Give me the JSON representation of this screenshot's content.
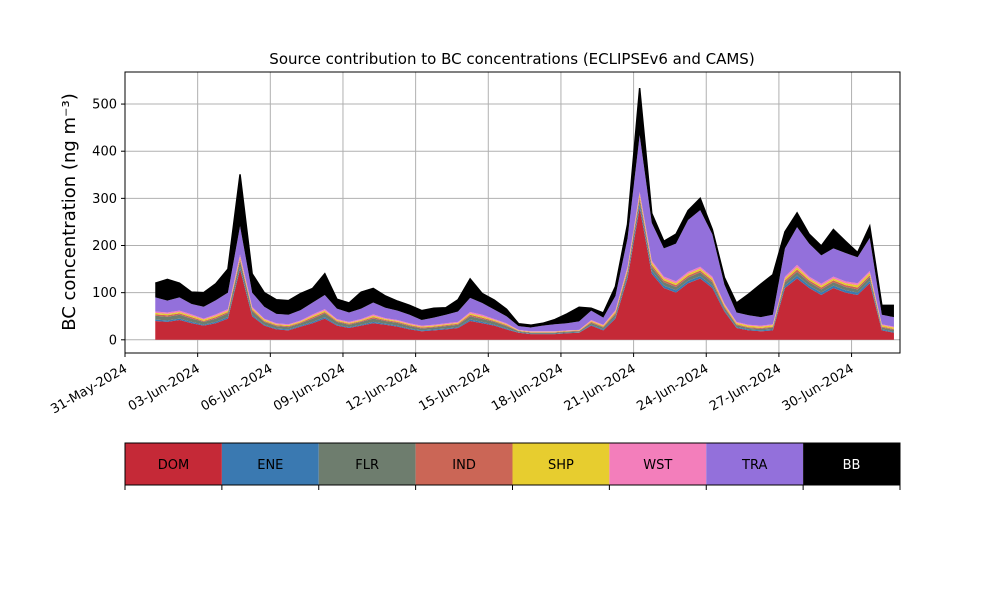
{
  "chart_data": {
    "type": "area",
    "stacked": true,
    "title": "Source contribution to BC concentrations (ECLIPSEv6 and CAMS)",
    "ylabel": "BC concentration (ng m⁻³)",
    "xlabel": "",
    "x_axis": {
      "type": "date",
      "range": [
        "2024-05-31",
        "2024-07-02"
      ],
      "tick_labels": [
        "31-May-2024",
        "03-Jun-2024",
        "06-Jun-2024",
        "09-Jun-2024",
        "12-Jun-2024",
        "15-Jun-2024",
        "18-Jun-2024",
        "21-Jun-2024",
        "24-Jun-2024",
        "27-Jun-2024",
        "30-Jun-2024"
      ],
      "tick_label_rotation": "30 degrees"
    },
    "y_axis": {
      "range": [
        -28,
        568
      ],
      "ticks": [
        0,
        100,
        200,
        300,
        400,
        500
      ]
    },
    "grid": true,
    "legend": {
      "placement": "colorbar below chart",
      "entries": [
        {
          "name": "DOM",
          "color": "#c52937"
        },
        {
          "name": "ENE",
          "color": "#3a79b1"
        },
        {
          "name": "FLR",
          "color": "#6e7d6e"
        },
        {
          "name": "IND",
          "color": "#cb6656"
        },
        {
          "name": "SHP",
          "color": "#e7cd2f"
        },
        {
          "name": "WST",
          "color": "#f37ebb"
        },
        {
          "name": "TRA",
          "color": "#9370db"
        },
        {
          "name": "BB",
          "color": "#000000"
        }
      ]
    },
    "x": [
      "2024-06-01T06:00",
      "2024-06-01T18:00",
      "2024-06-02T06:00",
      "2024-06-02T18:00",
      "2024-06-03T06:00",
      "2024-06-03T18:00",
      "2024-06-04T06:00",
      "2024-06-04T18:00",
      "2024-06-05T06:00",
      "2024-06-05T18:00",
      "2024-06-06T06:00",
      "2024-06-06T18:00",
      "2024-06-07T06:00",
      "2024-06-07T18:00",
      "2024-06-08T06:00",
      "2024-06-08T18:00",
      "2024-06-09T06:00",
      "2024-06-09T18:00",
      "2024-06-10T06:00",
      "2024-06-10T18:00",
      "2024-06-11T06:00",
      "2024-06-11T18:00",
      "2024-06-12T06:00",
      "2024-06-12T18:00",
      "2024-06-13T06:00",
      "2024-06-13T18:00",
      "2024-06-14T06:00",
      "2024-06-14T18:00",
      "2024-06-15T06:00",
      "2024-06-15T18:00",
      "2024-06-16T06:00",
      "2024-06-16T18:00",
      "2024-06-17T06:00",
      "2024-06-17T18:00",
      "2024-06-18T06:00",
      "2024-06-18T18:00",
      "2024-06-19T06:00",
      "2024-06-19T18:00",
      "2024-06-20T06:00",
      "2024-06-20T18:00",
      "2024-06-21T06:00",
      "2024-06-21T18:00",
      "2024-06-22T06:00",
      "2024-06-22T18:00",
      "2024-06-23T06:00",
      "2024-06-23T18:00",
      "2024-06-24T06:00",
      "2024-06-24T18:00",
      "2024-06-25T06:00",
      "2024-06-25T18:00",
      "2024-06-26T06:00",
      "2024-06-26T18:00",
      "2024-06-27T06:00",
      "2024-06-27T18:00",
      "2024-06-28T06:00",
      "2024-06-28T18:00",
      "2024-06-29T06:00",
      "2024-06-29T18:00",
      "2024-06-30T06:00",
      "2024-06-30T18:00",
      "2024-07-01T06:00",
      "2024-07-01T18:00"
    ],
    "series": [
      {
        "name": "DOM",
        "values": [
          40,
          38,
          42,
          35,
          30,
          35,
          45,
          150,
          50,
          30,
          22,
          20,
          28,
          35,
          45,
          30,
          25,
          30,
          35,
          32,
          28,
          22,
          18,
          20,
          22,
          25,
          40,
          35,
          30,
          22,
          15,
          12,
          12,
          12,
          14,
          15,
          30,
          20,
          45,
          130,
          280,
          140,
          110,
          100,
          120,
          130,
          110,
          60,
          25,
          20,
          18,
          20,
          110,
          130,
          110,
          95,
          110,
          100,
          95,
          120,
          20,
          15
        ]
      },
      {
        "name": "ENE",
        "values": [
          3,
          3,
          3,
          3,
          2,
          3,
          3,
          5,
          3,
          2,
          2,
          2,
          2,
          3,
          3,
          2,
          2,
          2,
          3,
          2,
          2,
          2,
          2,
          2,
          2,
          2,
          3,
          3,
          2,
          2,
          1,
          1,
          1,
          1,
          1,
          1,
          2,
          2,
          3,
          5,
          8,
          6,
          5,
          5,
          5,
          5,
          5,
          3,
          2,
          2,
          2,
          2,
          5,
          6,
          5,
          5,
          5,
          5,
          5,
          5,
          2,
          2
        ]
      },
      {
        "name": "FLR",
        "values": [
          8,
          8,
          8,
          7,
          6,
          7,
          8,
          12,
          8,
          6,
          5,
          5,
          5,
          7,
          8,
          6,
          5,
          6,
          7,
          6,
          6,
          5,
          4,
          4,
          5,
          5,
          7,
          6,
          6,
          5,
          2,
          2,
          2,
          2,
          2,
          2,
          4,
          4,
          6,
          8,
          10,
          8,
          7,
          7,
          7,
          8,
          7,
          5,
          4,
          3,
          3,
          4,
          7,
          8,
          7,
          7,
          7,
          7,
          7,
          8,
          4,
          4
        ]
      },
      {
        "name": "IND",
        "values": [
          3,
          3,
          3,
          3,
          2,
          3,
          3,
          5,
          3,
          2,
          2,
          2,
          2,
          3,
          3,
          2,
          2,
          2,
          3,
          2,
          2,
          2,
          2,
          2,
          2,
          2,
          3,
          3,
          2,
          2,
          1,
          1,
          1,
          1,
          1,
          1,
          2,
          2,
          3,
          4,
          6,
          5,
          4,
          4,
          4,
          4,
          4,
          3,
          2,
          2,
          2,
          2,
          4,
          5,
          4,
          4,
          4,
          4,
          4,
          4,
          2,
          2
        ]
      },
      {
        "name": "SHP",
        "values": [
          3,
          3,
          3,
          3,
          3,
          3,
          3,
          4,
          3,
          3,
          2,
          2,
          2,
          3,
          3,
          2,
          2,
          2,
          3,
          2,
          2,
          2,
          2,
          2,
          2,
          2,
          3,
          3,
          2,
          2,
          1,
          1,
          1,
          1,
          1,
          1,
          2,
          2,
          3,
          4,
          5,
          5,
          4,
          4,
          4,
          4,
          4,
          3,
          3,
          3,
          3,
          3,
          4,
          5,
          4,
          4,
          4,
          4,
          5,
          5,
          3,
          3
        ]
      },
      {
        "name": "WST",
        "values": [
          3,
          3,
          3,
          3,
          2,
          3,
          3,
          5,
          3,
          2,
          2,
          2,
          2,
          3,
          3,
          2,
          2,
          2,
          3,
          2,
          2,
          2,
          2,
          2,
          2,
          2,
          3,
          3,
          2,
          2,
          1,
          1,
          1,
          1,
          1,
          1,
          2,
          2,
          3,
          4,
          5,
          4,
          4,
          4,
          4,
          4,
          4,
          3,
          2,
          2,
          2,
          2,
          4,
          5,
          4,
          4,
          4,
          4,
          4,
          4,
          2,
          2
        ]
      },
      {
        "name": "TRA",
        "values": [
          30,
          25,
          28,
          22,
          25,
          30,
          35,
          60,
          30,
          25,
          20,
          20,
          22,
          25,
          30,
          22,
          20,
          22,
          25,
          22,
          20,
          18,
          12,
          15,
          18,
          22,
          30,
          25,
          20,
          15,
          8,
          8,
          12,
          15,
          15,
          18,
          20,
          15,
          30,
          60,
          120,
          80,
          60,
          80,
          110,
          120,
          90,
          40,
          20,
          20,
          18,
          20,
          60,
          80,
          70,
          60,
          60,
          60,
          55,
          70,
          20,
          20
        ]
      },
      {
        "name": "BB",
        "values": [
          30,
          45,
          30,
          25,
          30,
          35,
          50,
          110,
          40,
          30,
          30,
          30,
          35,
          30,
          45,
          20,
          20,
          35,
          30,
          25,
          20,
          20,
          20,
          20,
          15,
          25,
          40,
          20,
          20,
          15,
          5,
          5,
          5,
          10,
          20,
          30,
          5,
          10,
          20,
          30,
          100,
          20,
          15,
          20,
          20,
          25,
          10,
          15,
          20,
          45,
          70,
          85,
          35,
          30,
          20,
          20,
          40,
          25,
          10,
          25,
          20,
          25
        ]
      }
    ]
  }
}
